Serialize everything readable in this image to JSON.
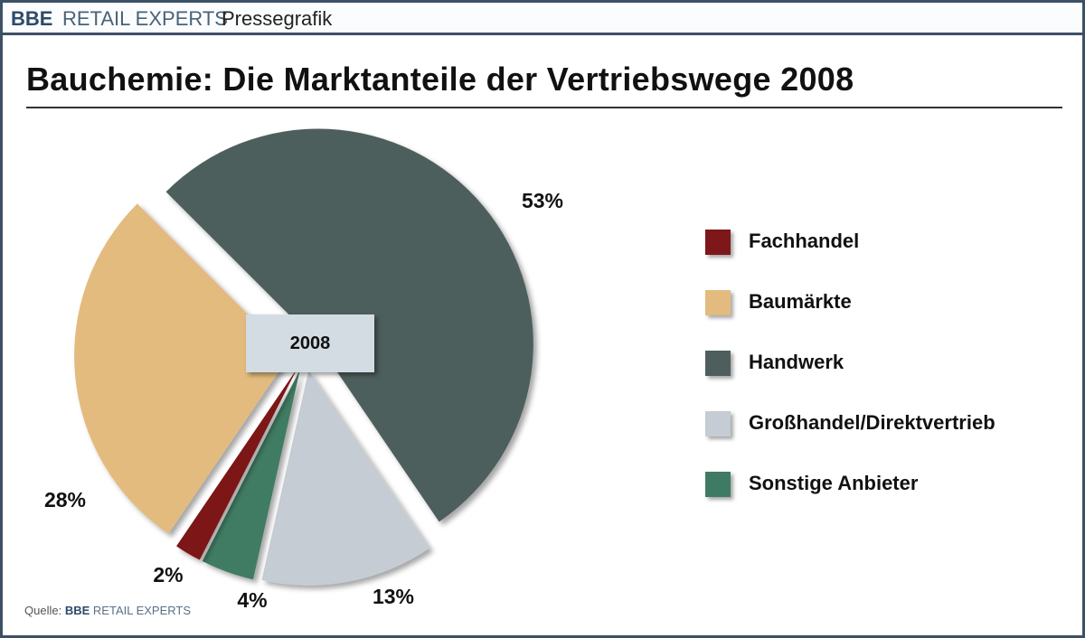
{
  "header": {
    "brand_bold": "BBE",
    "brand": "RETAIL EXPERTS",
    "label": "Pressegrafik"
  },
  "source": {
    "prefix": "Quelle:",
    "brand_bold": "BBE",
    "brand": "RETAIL EXPERTS"
  },
  "chart_data": {
    "type": "pie",
    "title": "Bauchemie: Die Marktanteile der Vertriebswege 2008",
    "center_label": "2008",
    "exploded": true,
    "legend_position": "right",
    "slices": [
      {
        "name": "Fachhandel",
        "value": 2,
        "label": "2%",
        "color": "#7d1719"
      },
      {
        "name": "Baumärkte",
        "value": 28,
        "label": "28%",
        "color": "#e3bb7e"
      },
      {
        "name": "Handwerk",
        "value": 53,
        "label": "53%",
        "color": "#4e5e5d"
      },
      {
        "name": "Großhandel/Direktvertrieb",
        "value": 13,
        "label": "13%",
        "color": "#c5ccd3"
      },
      {
        "name": "Sonstige Anbieter",
        "value": 4,
        "label": "4%",
        "color": "#3f7b64"
      }
    ]
  }
}
